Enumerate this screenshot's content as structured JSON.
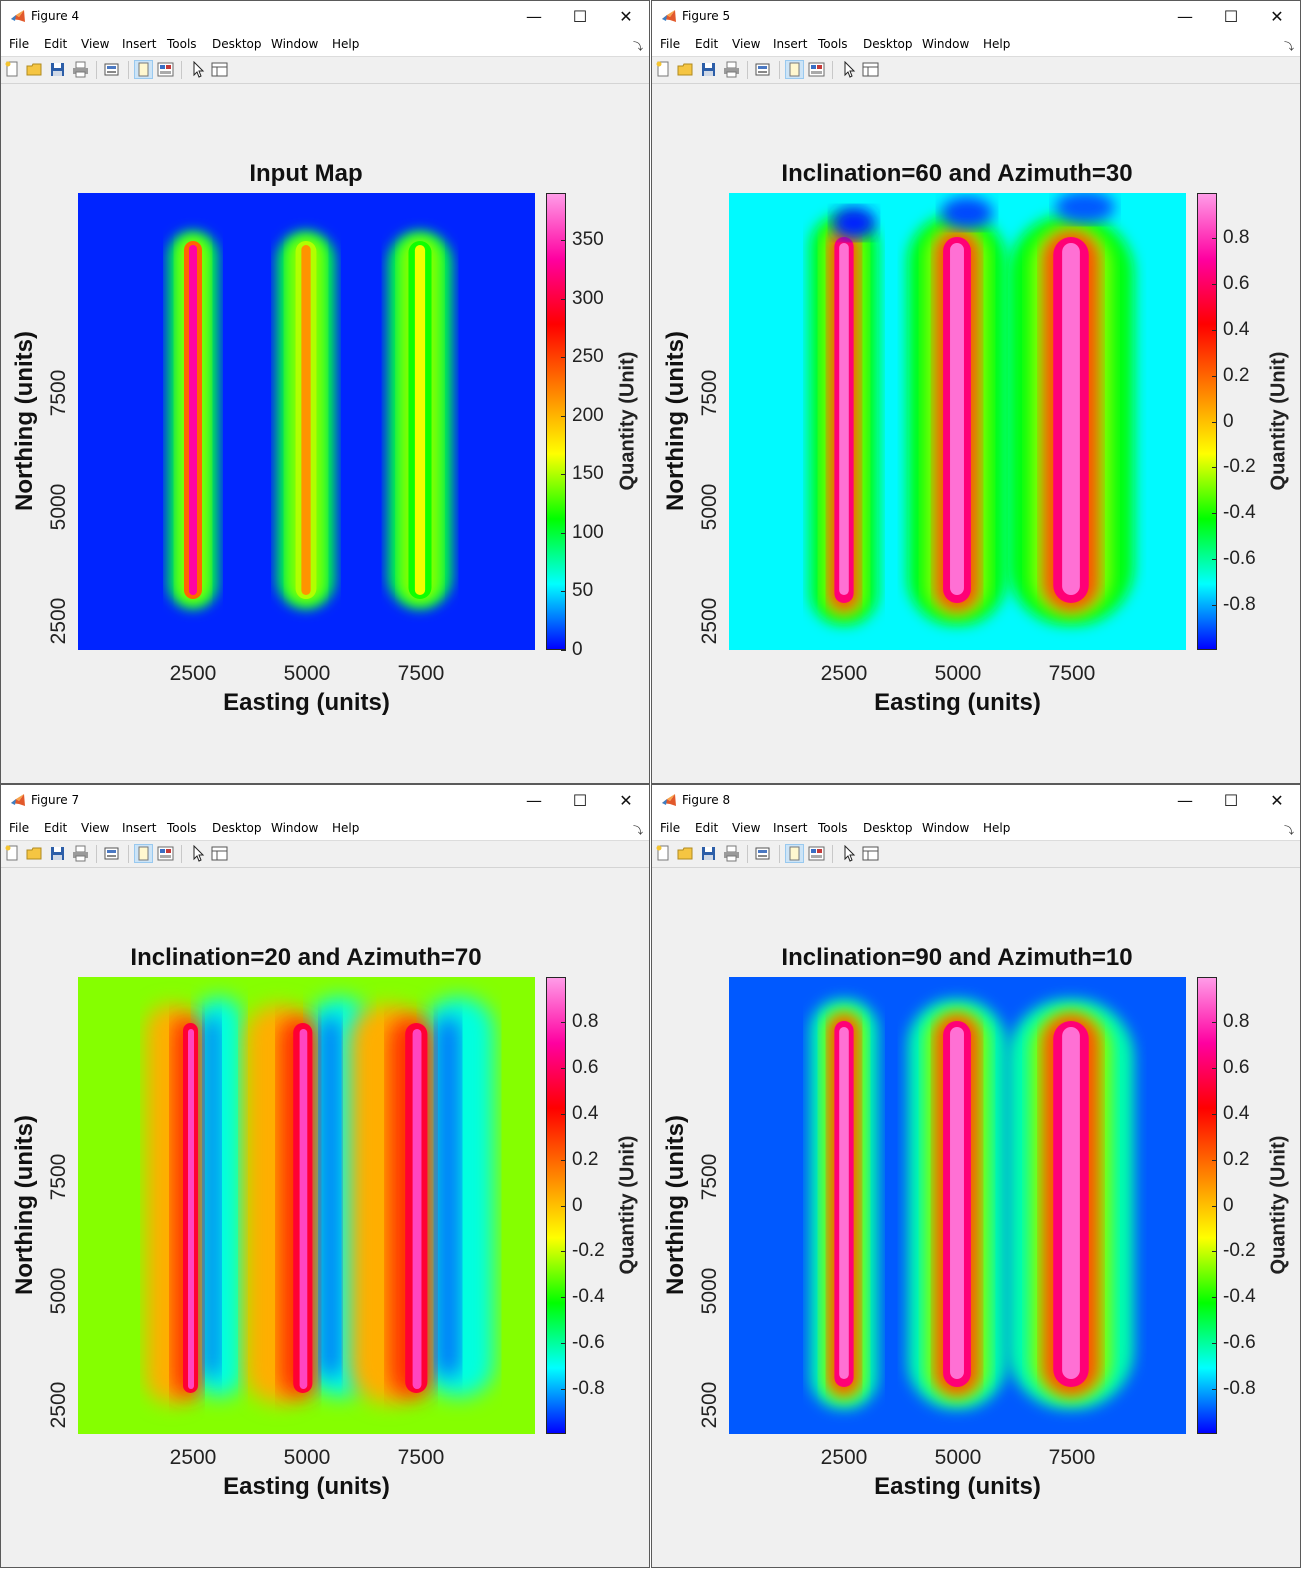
{
  "menu": [
    "File",
    "Edit",
    "View",
    "Insert",
    "Tools",
    "Desktop",
    "Window",
    "Help"
  ],
  "colormap": [
    "#0000ff",
    "#00ffff",
    "#00ff00",
    "#ffff00",
    "#ff8000",
    "#ff0000",
    "#ff00a0",
    "#ff9ce8"
  ],
  "windows": [
    {
      "title": "Figure 4",
      "plot_title": "Input Map",
      "xlabel": "Easting (units)",
      "ylabel": "Northing (units)",
      "clabel": "Quantity (Unit)",
      "xticks": [
        "2500",
        "5000",
        "7500"
      ],
      "yticks": [
        "2500",
        "5000",
        "7500"
      ],
      "cticks": [
        "350",
        "300",
        "250",
        "200",
        "150",
        "100",
        "50",
        "0"
      ]
    },
    {
      "title": "Figure 5",
      "plot_title": "Inclination=60 and Azimuth=30",
      "xlabel": "Easting (units)",
      "ylabel": "Northing (units)",
      "clabel": "Quantity (Unit)",
      "xticks": [
        "2500",
        "5000",
        "7500"
      ],
      "yticks": [
        "2500",
        "5000",
        "7500"
      ],
      "cticks": [
        "0.8",
        "0.6",
        "0.4",
        "0.2",
        "0",
        "-0.2",
        "-0.4",
        "-0.6",
        "-0.8"
      ]
    },
    {
      "title": "Figure 7",
      "plot_title": "Inclination=20 and Azimuth=70",
      "xlabel": "Easting (units)",
      "ylabel": "Northing (units)",
      "clabel": "Quantity (Unit)",
      "xticks": [
        "2500",
        "5000",
        "7500"
      ],
      "yticks": [
        "2500",
        "5000",
        "7500"
      ],
      "cticks": [
        "0.8",
        "0.6",
        "0.4",
        "0.2",
        "0",
        "-0.2",
        "-0.4",
        "-0.6",
        "-0.8"
      ]
    },
    {
      "title": "Figure 8",
      "plot_title": "Inclination=90 and Azimuth=10",
      "xlabel": "Easting (units)",
      "ylabel": "Northing (units)",
      "clabel": "Quantity (Unit)",
      "xticks": [
        "2500",
        "5000",
        "7500"
      ],
      "yticks": [
        "2500",
        "5000",
        "7500"
      ],
      "cticks": [
        "0.8",
        "0.6",
        "0.4",
        "0.2",
        "0",
        "-0.2",
        "-0.4",
        "-0.6",
        "-0.8"
      ]
    }
  ]
}
